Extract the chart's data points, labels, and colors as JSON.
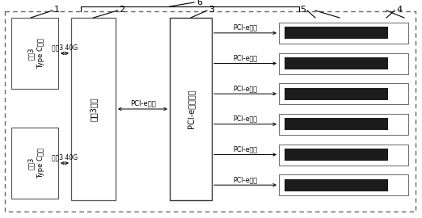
{
  "bg_color": "#ffffff",
  "outer_box_bg": "#ffffff",
  "box_face_color": "#ffffff",
  "dark_block_color": "#1c1c1c",
  "dark_block_pattern": "#2a2a2a",
  "label_6": "6",
  "label_1": "1",
  "label_2": "2",
  "label_3": "3",
  "label_4": "4",
  "label_5": "5",
  "text_tb_top": "雷电3",
  "text_tb_bottom": "Type C接口",
  "text_chip": "雷电3芯片",
  "text_switch": "PCI-e交换芯片",
  "text_thunder_arrow": "雷电3 40G",
  "text_pcie_center": "PCI-e通道",
  "text_pcie_slot": "PCI-e通道",
  "n_slots": 6,
  "figw": 5.22,
  "figh": 2.7,
  "dpi": 100
}
